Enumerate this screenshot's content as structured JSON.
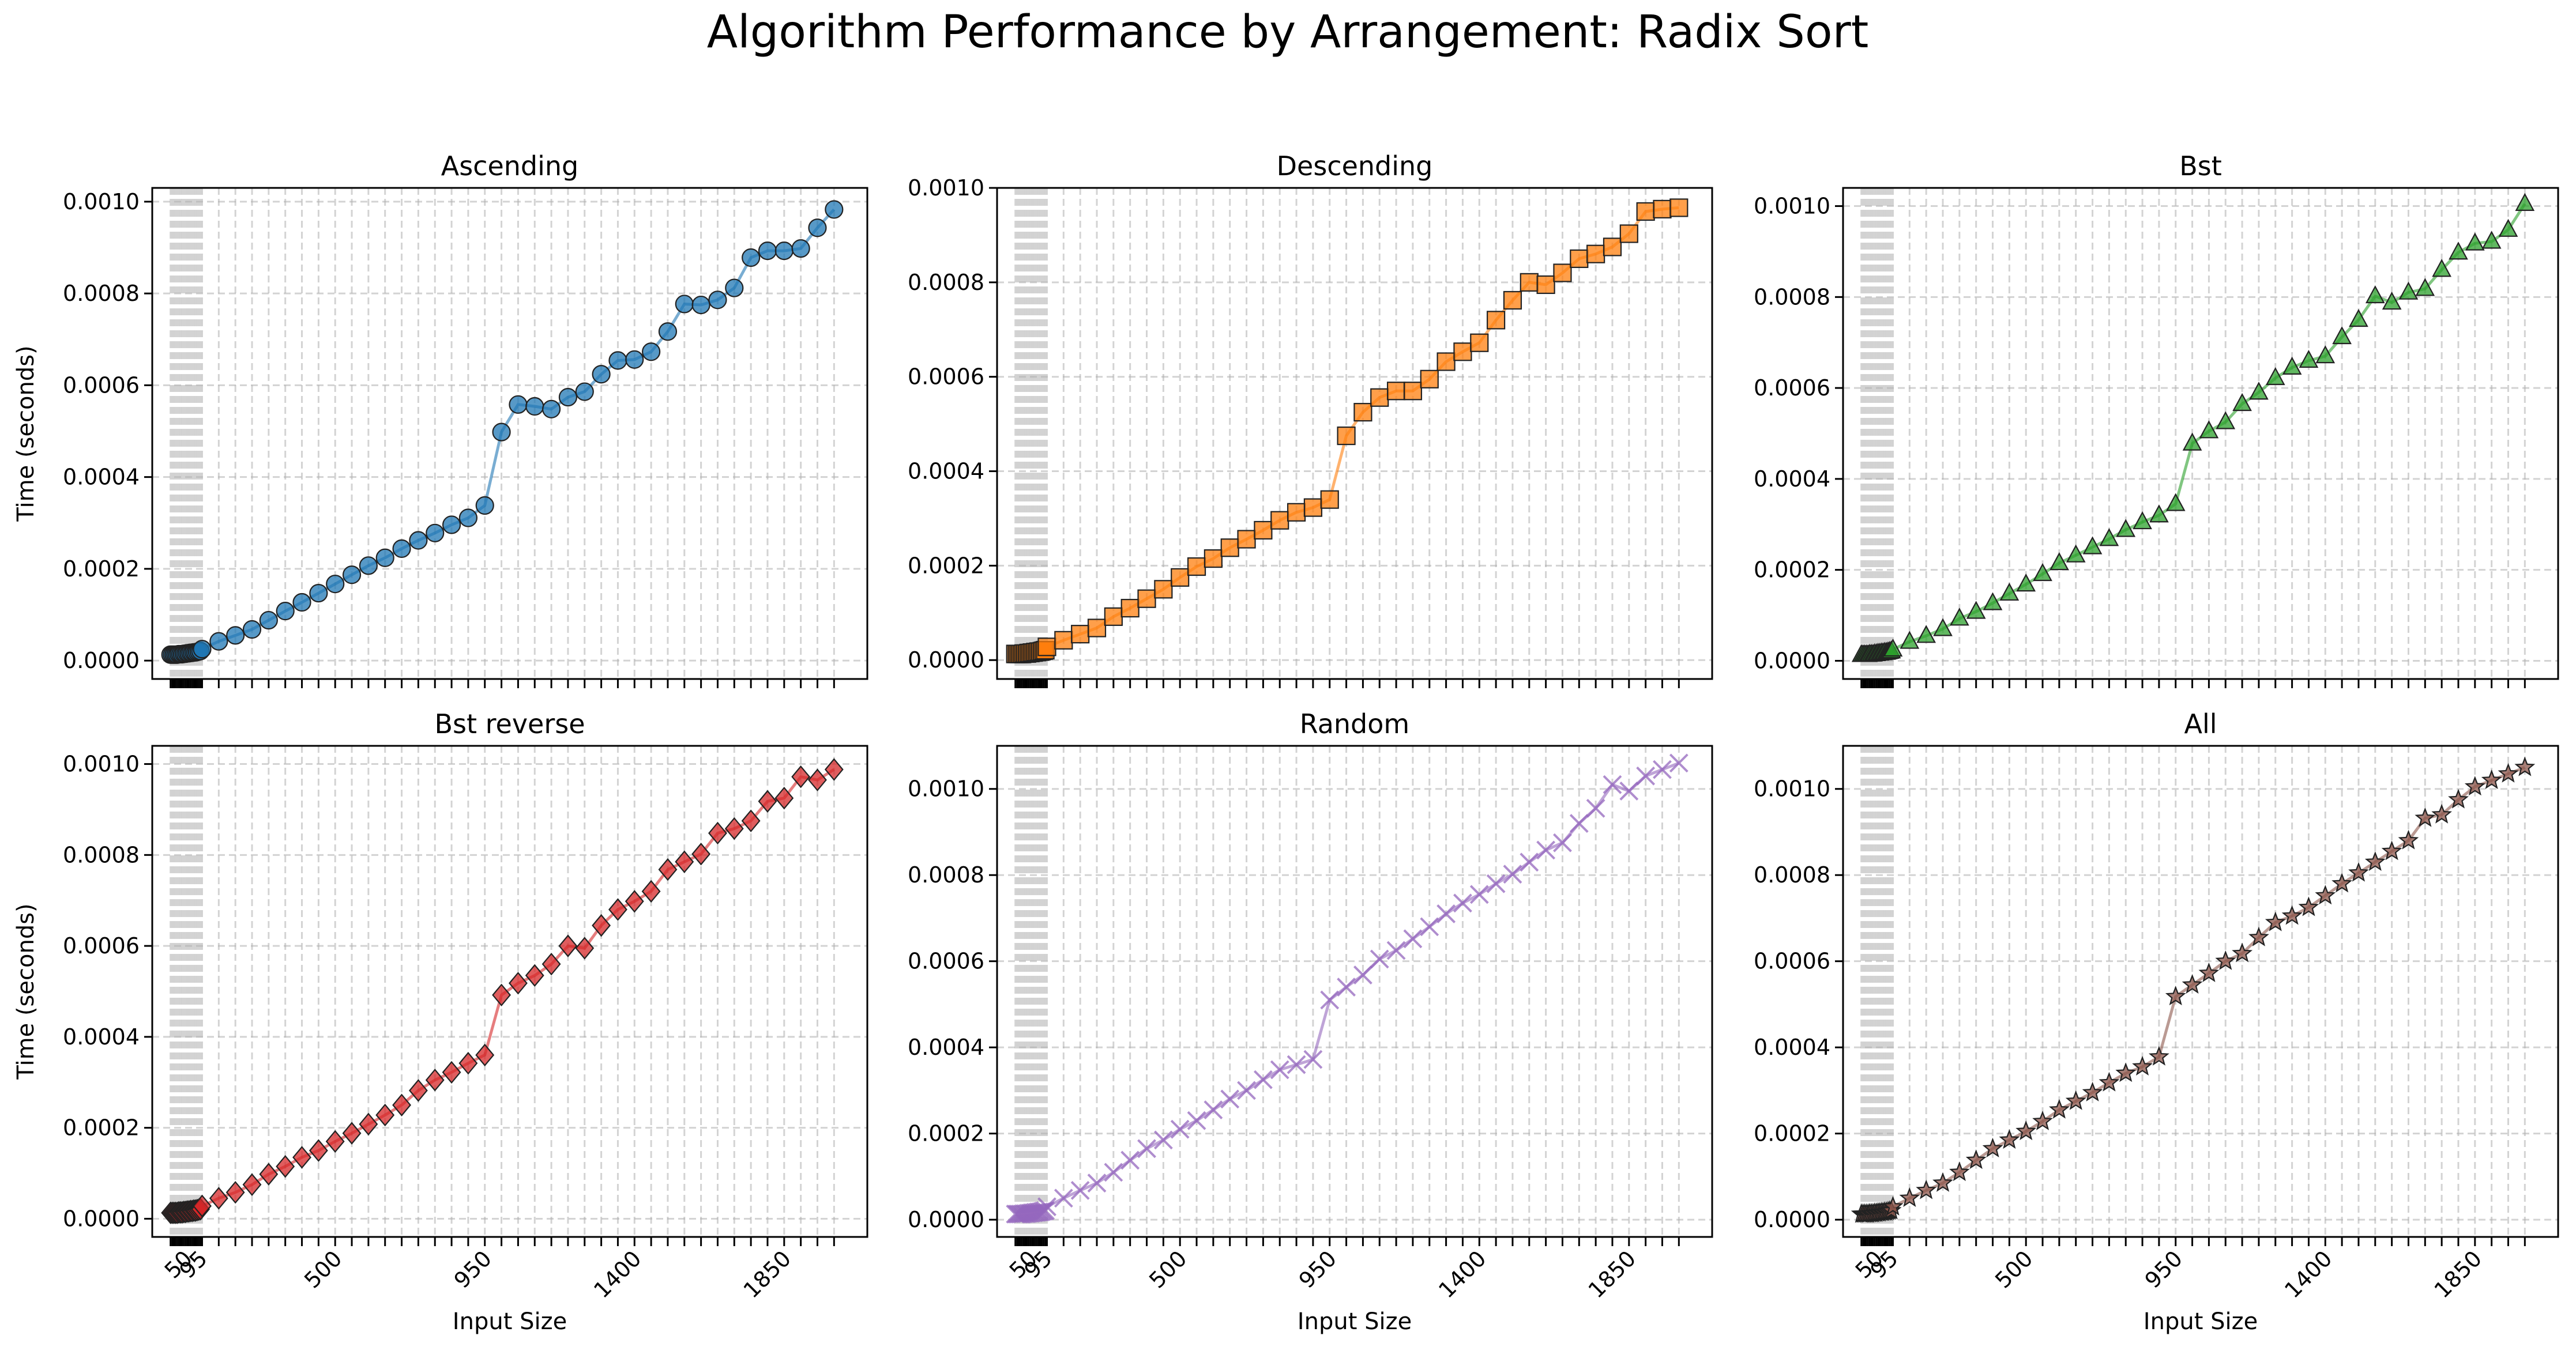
{
  "figure": {
    "title": "Algorithm Performance by Arrangement: Radix Sort"
  },
  "axes_common": {
    "xlabel": "Input Size",
    "ylabel": "Time (seconds)",
    "x_tick_labels": [
      "50",
      "95",
      "500",
      "950",
      "1400",
      "1850"
    ],
    "x_tick_values": [
      50,
      95,
      500,
      950,
      1400,
      1850
    ],
    "y_tick_labels": [
      "0.0000",
      "0.0002",
      "0.0004",
      "0.0006",
      "0.0008",
      "0.0010"
    ],
    "y_tick_values": [
      0,
      0.0002,
      0.0004,
      0.0006,
      0.0008,
      0.001
    ],
    "xlim": [
      -50,
      2100
    ],
    "grid": true
  },
  "chart_data": [
    {
      "type": "line",
      "title": "Ascending",
      "color": "#1f77b4",
      "marker": "circle",
      "ylim": [
        -4e-05,
        0.00103
      ],
      "x": [
        5,
        10,
        15,
        20,
        25,
        30,
        35,
        40,
        45,
        50,
        55,
        60,
        65,
        70,
        75,
        80,
        85,
        90,
        95,
        100,
        150,
        200,
        250,
        300,
        350,
        400,
        450,
        500,
        550,
        600,
        650,
        700,
        750,
        800,
        850,
        900,
        950,
        1000,
        1050,
        1100,
        1150,
        1200,
        1250,
        1300,
        1350,
        1400,
        1450,
        1500,
        1550,
        1600,
        1650,
        1700,
        1750,
        1800,
        1850,
        1900,
        1950,
        2000
      ],
      "y": [
        1.3e-05,
        1.3e-05,
        1.3e-05,
        1.3e-05,
        1.3e-05,
        1.4e-05,
        1.4e-05,
        1.4e-05,
        1.5e-05,
        1.5e-05,
        1.6e-05,
        1.6e-05,
        1.7e-05,
        1.7e-05,
        1.8e-05,
        1.8e-05,
        1.9e-05,
        2e-05,
        2.1e-05,
        2.5e-05,
        4.2e-05,
        5.5e-05,
        6.8e-05,
        8.8e-05,
        0.000108,
        0.000127,
        0.000147,
        0.000167,
        0.000187,
        0.000207,
        0.000224,
        0.000244,
        0.000262,
        0.000278,
        0.000296,
        0.000311,
        0.000338,
        0.000498,
        0.000558,
        0.000554,
        0.000548,
        0.000574,
        0.000586,
        0.000624,
        0.000654,
        0.000656,
        0.000673,
        0.000717,
        0.000777,
        0.000775,
        0.000786,
        0.000812,
        0.000878,
        0.000893,
        0.000893,
        0.000898,
        0.000943,
        0.000983
      ]
    },
    {
      "type": "line",
      "title": "Descending",
      "color": "#ff7f0e",
      "marker": "square",
      "ylim": [
        -4e-05,
        0.001
      ],
      "x": [
        5,
        10,
        15,
        20,
        25,
        30,
        35,
        40,
        45,
        50,
        55,
        60,
        65,
        70,
        75,
        80,
        85,
        90,
        95,
        100,
        150,
        200,
        250,
        300,
        350,
        400,
        450,
        500,
        550,
        600,
        650,
        700,
        750,
        800,
        850,
        900,
        950,
        1000,
        1050,
        1100,
        1150,
        1200,
        1250,
        1300,
        1350,
        1400,
        1450,
        1500,
        1550,
        1600,
        1650,
        1700,
        1750,
        1800,
        1850,
        1900,
        1950,
        2000
      ],
      "y": [
        1.3e-05,
        1.3e-05,
        1.3e-05,
        1.3e-05,
        1.3e-05,
        1.4e-05,
        1.4e-05,
        1.4e-05,
        1.5e-05,
        1.5e-05,
        1.6e-05,
        1.6e-05,
        1.7e-05,
        1.7e-05,
        1.8e-05,
        1.8e-05,
        1.9e-05,
        2e-05,
        2.1e-05,
        2.8e-05,
        4.2e-05,
        5.5e-05,
        6.8e-05,
        9.2e-05,
        0.00011,
        0.00013,
        0.00015,
        0.000175,
        0.000198,
        0.000215,
        0.000238,
        0.000256,
        0.000275,
        0.000296,
        0.000313,
        0.000323,
        0.00034,
        0.000475,
        0.000525,
        0.000556,
        0.00057,
        0.00057,
        0.000595,
        0.000632,
        0.000653,
        0.000672,
        0.00072,
        0.000762,
        0.0008,
        0.000795,
        0.00082,
        0.00085,
        0.00086,
        0.000875,
        0.000903,
        0.00095,
        0.000955,
        0.000958
      ]
    },
    {
      "type": "line",
      "title": "Bst",
      "color": "#2ca02c",
      "marker": "triangle",
      "ylim": [
        -4e-05,
        0.00104
      ],
      "x": [
        5,
        10,
        15,
        20,
        25,
        30,
        35,
        40,
        45,
        50,
        55,
        60,
        65,
        70,
        75,
        80,
        85,
        90,
        95,
        100,
        150,
        200,
        250,
        300,
        350,
        400,
        450,
        500,
        550,
        600,
        650,
        700,
        750,
        800,
        850,
        900,
        950,
        1000,
        1050,
        1100,
        1150,
        1200,
        1250,
        1300,
        1350,
        1400,
        1450,
        1500,
        1550,
        1600,
        1650,
        1700,
        1750,
        1800,
        1850,
        1900,
        1950,
        2000
      ],
      "y": [
        1.3e-05,
        1.3e-05,
        1.3e-05,
        1.3e-05,
        1.3e-05,
        1.4e-05,
        1.4e-05,
        1.4e-05,
        1.5e-05,
        1.5e-05,
        1.6e-05,
        1.6e-05,
        1.7e-05,
        1.7e-05,
        1.8e-05,
        1.8e-05,
        1.9e-05,
        2e-05,
        2.1e-05,
        2.5e-05,
        4.2e-05,
        5.5e-05,
        7e-05,
        9.3e-05,
        0.000108,
        0.000127,
        0.000148,
        0.000168,
        0.000191,
        0.000215,
        0.000232,
        0.00025,
        0.000268,
        0.000288,
        0.000305,
        0.00032,
        0.000345,
        0.000478,
        0.000505,
        0.000525,
        0.000565,
        0.00059,
        0.000622,
        0.000645,
        0.00066,
        0.00067,
        0.000712,
        0.00075,
        0.000802,
        0.000788,
        0.00081,
        0.000818,
        0.00086,
        0.000898,
        0.000918,
        0.000922,
        0.000948,
        0.001005
      ]
    },
    {
      "type": "line",
      "title": "Bst reverse",
      "color": "#d62728",
      "marker": "diamond",
      "ylim": [
        -4e-05,
        0.00104
      ],
      "x": [
        5,
        10,
        15,
        20,
        25,
        30,
        35,
        40,
        45,
        50,
        55,
        60,
        65,
        70,
        75,
        80,
        85,
        90,
        95,
        100,
        150,
        200,
        250,
        300,
        350,
        400,
        450,
        500,
        550,
        600,
        650,
        700,
        750,
        800,
        850,
        900,
        950,
        1000,
        1050,
        1100,
        1150,
        1200,
        1250,
        1300,
        1350,
        1400,
        1450,
        1500,
        1550,
        1600,
        1650,
        1700,
        1750,
        1800,
        1850,
        1900,
        1950,
        2000
      ],
      "y": [
        1.3e-05,
        1.3e-05,
        1.3e-05,
        1.3e-05,
        1.3e-05,
        1.4e-05,
        1.4e-05,
        1.4e-05,
        1.5e-05,
        1.5e-05,
        1.6e-05,
        1.6e-05,
        1.7e-05,
        1.7e-05,
        1.8e-05,
        1.8e-05,
        1.9e-05,
        2e-05,
        2.1e-05,
        2.8e-05,
        4.5e-05,
        5.8e-05,
        7.5e-05,
        9.8e-05,
        0.000115,
        0.000135,
        0.00015,
        0.00017,
        0.000188,
        0.000208,
        0.000228,
        0.00025,
        0.000282,
        0.000305,
        0.000322,
        0.000342,
        0.00036,
        0.000492,
        0.000518,
        0.000535,
        0.00056,
        0.0006,
        0.000595,
        0.000645,
        0.00068,
        0.000698,
        0.00072,
        0.000768,
        0.000785,
        0.000802,
        0.000848,
        0.000858,
        0.000875,
        0.000918,
        0.000925,
        0.000972,
        0.000965,
        0.000988
      ]
    },
    {
      "type": "line",
      "title": "Random",
      "color": "#9467bd",
      "marker": "x",
      "ylim": [
        -4e-05,
        0.0011
      ],
      "x": [
        5,
        10,
        15,
        20,
        25,
        30,
        35,
        40,
        45,
        50,
        55,
        60,
        65,
        70,
        75,
        80,
        85,
        90,
        95,
        100,
        150,
        200,
        250,
        300,
        350,
        400,
        450,
        500,
        550,
        600,
        650,
        700,
        750,
        800,
        850,
        900,
        950,
        1000,
        1050,
        1100,
        1150,
        1200,
        1250,
        1300,
        1350,
        1400,
        1450,
        1500,
        1550,
        1600,
        1650,
        1700,
        1750,
        1800,
        1850,
        1900,
        1950,
        2000
      ],
      "y": [
        1.3e-05,
        1.3e-05,
        1.3e-05,
        1.3e-05,
        1.3e-05,
        1.4e-05,
        1.4e-05,
        1.4e-05,
        1.5e-05,
        1.5e-05,
        1.6e-05,
        1.6e-05,
        1.7e-05,
        1.7e-05,
        1.8e-05,
        1.8e-05,
        1.9e-05,
        2e-05,
        2.1e-05,
        3e-05,
        5e-05,
        6.8e-05,
        8.5e-05,
        0.00011,
        0.000138,
        0.000165,
        0.000185,
        0.00021,
        0.00023,
        0.000255,
        0.00028,
        0.0003,
        0.000325,
        0.000348,
        0.00036,
        0.000372,
        0.00051,
        0.00054,
        0.000568,
        0.000605,
        0.000625,
        0.000652,
        0.00068,
        0.00071,
        0.000735,
        0.000755,
        0.00078,
        0.000802,
        0.00083,
        0.000858,
        0.000875,
        0.00092,
        0.000955,
        0.00101,
        0.000995,
        0.00103,
        0.001045,
        0.00106
      ]
    },
    {
      "type": "line",
      "title": "All",
      "color": "#8c564b",
      "marker": "star",
      "ylim": [
        -4e-05,
        0.0011
      ],
      "x": [
        5,
        10,
        15,
        20,
        25,
        30,
        35,
        40,
        45,
        50,
        55,
        60,
        65,
        70,
        75,
        80,
        85,
        90,
        95,
        100,
        150,
        200,
        250,
        300,
        350,
        400,
        450,
        500,
        550,
        600,
        650,
        700,
        750,
        800,
        850,
        900,
        950,
        1000,
        1050,
        1100,
        1150,
        1200,
        1250,
        1300,
        1350,
        1400,
        1450,
        1500,
        1550,
        1600,
        1650,
        1700,
        1750,
        1800,
        1850,
        1900,
        1950,
        2000
      ],
      "y": [
        1.3e-05,
        1.3e-05,
        1.3e-05,
        1.3e-05,
        1.3e-05,
        1.4e-05,
        1.4e-05,
        1.4e-05,
        1.5e-05,
        1.5e-05,
        1.6e-05,
        1.6e-05,
        1.7e-05,
        1.7e-05,
        1.8e-05,
        1.8e-05,
        1.9e-05,
        2e-05,
        2.1e-05,
        3e-05,
        5e-05,
        6.8e-05,
        8.5e-05,
        0.00011,
        0.000138,
        0.000165,
        0.000185,
        0.000205,
        0.000228,
        0.000255,
        0.000275,
        0.000295,
        0.000318,
        0.00034,
        0.000355,
        0.000378,
        0.000518,
        0.000545,
        0.000572,
        0.0006,
        0.000618,
        0.000655,
        0.00069,
        0.000705,
        0.000725,
        0.000752,
        0.00078,
        0.000805,
        0.00083,
        0.000855,
        0.00088,
        0.000932,
        0.00094,
        0.000975,
        0.001005,
        0.00102,
        0.001035,
        0.00105
      ]
    }
  ]
}
